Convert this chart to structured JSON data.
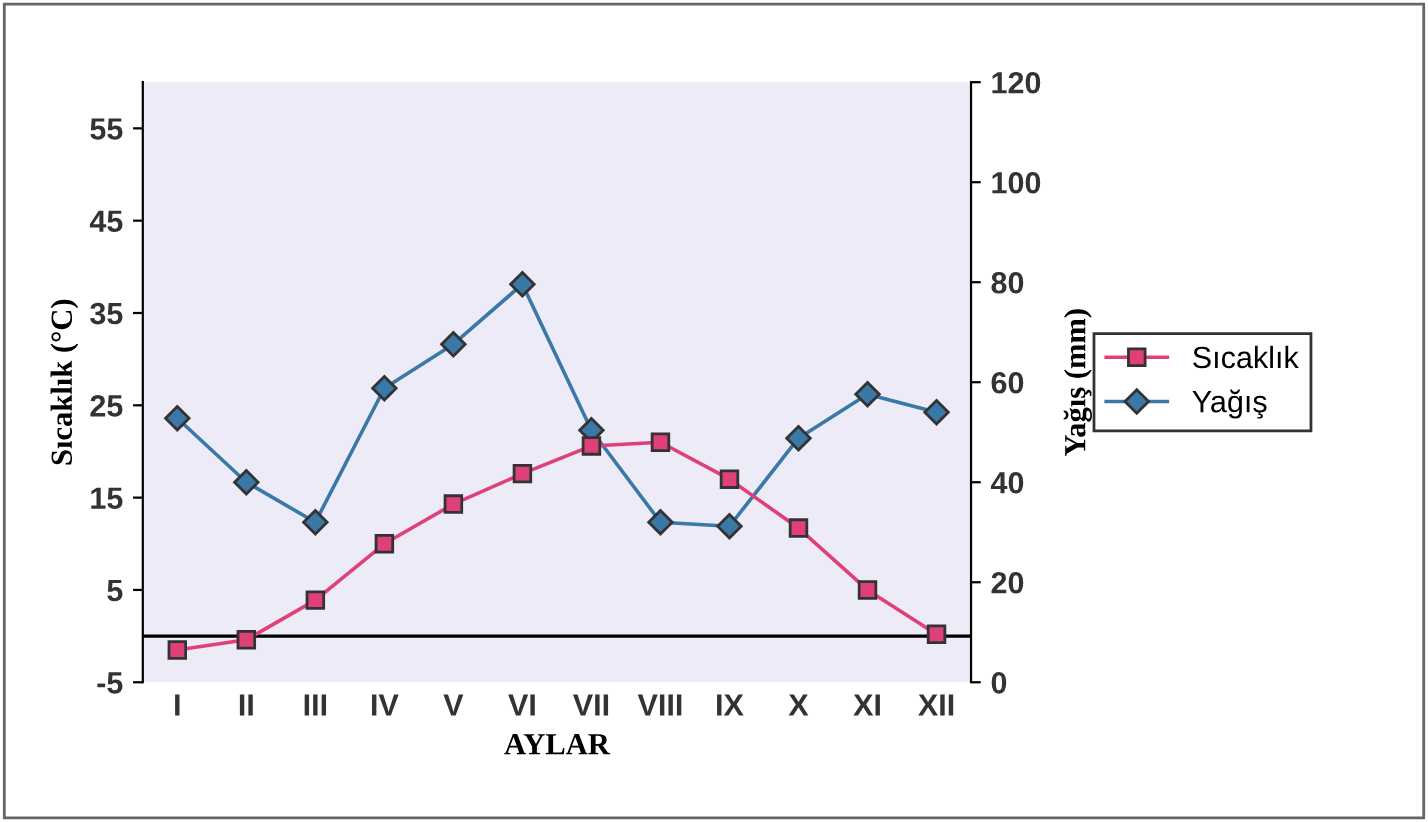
{
  "chart_data": {
    "type": "line",
    "xlabel": "AYLAR",
    "ylabel": "Sıcaklık (°C)",
    "y2label": "Yağış (mm)",
    "categories": [
      "I",
      "II",
      "III",
      "IV",
      "V",
      "VI",
      "VII",
      "VIII",
      "IX",
      "X",
      "XI",
      "XII"
    ],
    "series": [
      {
        "name": "Sıcaklık",
        "color": "#e0407a",
        "marker": "square",
        "values": [
          -1.5,
          -0.4,
          3.9,
          10,
          14.3,
          17.6,
          20.6,
          21,
          17,
          11.7,
          5,
          0.2
        ]
      },
      {
        "name": "Yağış",
        "color": "#3a78a8",
        "marker": "diamond",
        "axis": "y2",
        "values": [
          52.8,
          40,
          32,
          58.8,
          67.6,
          79.6,
          50.4,
          32,
          31.2,
          48.8,
          57.6,
          54
        ]
      }
    ],
    "ylim": [
      -5,
      60
    ],
    "yticks": [
      -5,
      5,
      15,
      25,
      35,
      45,
      55
    ],
    "y2lim": [
      0,
      120
    ],
    "y2ticks": [
      0,
      20,
      40,
      60,
      80,
      100,
      120
    ],
    "ref_lines": [
      {
        "axis": "y",
        "value": 0,
        "color": "#000000"
      }
    ],
    "legend": "right",
    "grid": false
  }
}
